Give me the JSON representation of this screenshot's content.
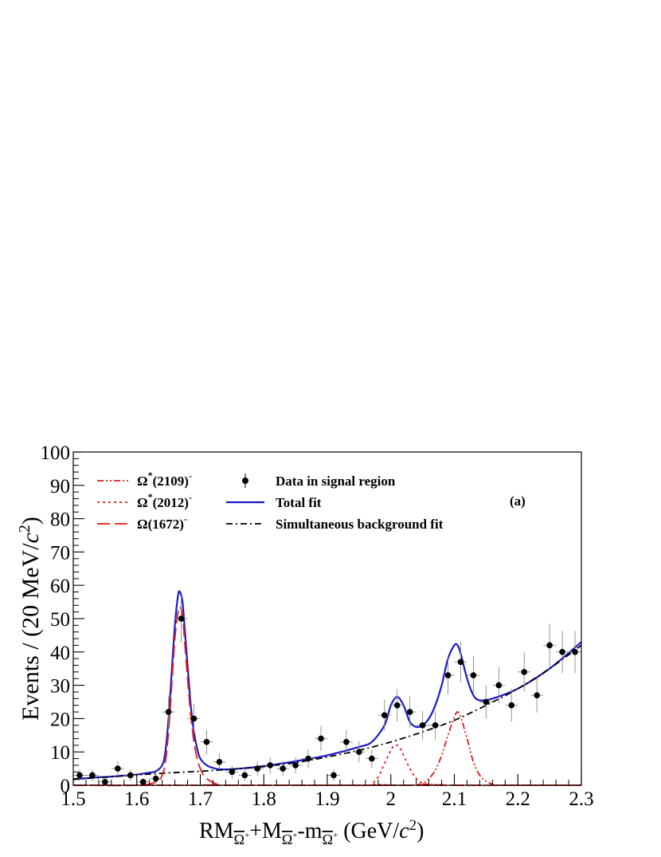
{
  "chart_data": {
    "type": "scatter",
    "xlabel": {
      "base": "RM",
      "sub1": "Ω",
      "sup1": "+",
      "mid1": "+M",
      "sub2": "Ω",
      "sup2": "+",
      "mid2": "-m",
      "sub3": "Ω",
      "sup3": "+",
      "units_pre": " (GeV/",
      "units_c": "c",
      "units_pow": "2",
      "units_post": ")"
    },
    "ylabel": {
      "pre": "Events / (20 MeV/",
      "c": "c",
      "pow": "2",
      "post": ")"
    },
    "xlim": [
      1.5,
      2.3
    ],
    "ylim": [
      0,
      100
    ],
    "x_ticks": [
      {
        "v": 1.5,
        "label": "1.5"
      },
      {
        "v": 1.6,
        "label": "1.6"
      },
      {
        "v": 1.7,
        "label": "1.7"
      },
      {
        "v": 1.8,
        "label": "1.8"
      },
      {
        "v": 1.9,
        "label": "1.9"
      },
      {
        "v": 2.0,
        "label": "2"
      },
      {
        "v": 2.1,
        "label": "2.1"
      },
      {
        "v": 2.2,
        "label": "2.2"
      },
      {
        "v": 2.3,
        "label": "2.3"
      }
    ],
    "y_ticks": [
      {
        "v": 0,
        "label": "0"
      },
      {
        "v": 10,
        "label": "10"
      },
      {
        "v": 20,
        "label": "20"
      },
      {
        "v": 30,
        "label": "30"
      },
      {
        "v": 40,
        "label": "40"
      },
      {
        "v": 50,
        "label": "50"
      },
      {
        "v": 60,
        "label": "60"
      },
      {
        "v": 70,
        "label": "70"
      },
      {
        "v": 80,
        "label": "80"
      },
      {
        "v": 90,
        "label": "90"
      },
      {
        "v": 100,
        "label": "100"
      }
    ],
    "panel_label": "(a)",
    "bin_width": 0.02,
    "data_points": {
      "name": "Data in signal region",
      "x": [
        1.51,
        1.53,
        1.55,
        1.57,
        1.59,
        1.61,
        1.63,
        1.65,
        1.67,
        1.69,
        1.71,
        1.73,
        1.75,
        1.77,
        1.79,
        1.81,
        1.83,
        1.85,
        1.87,
        1.89,
        1.91,
        1.93,
        1.95,
        1.97,
        1.99,
        2.01,
        2.03,
        2.05,
        2.07,
        2.09,
        2.11,
        2.13,
        2.15,
        2.17,
        2.19,
        2.21,
        2.23,
        2.25,
        2.27,
        2.29
      ],
      "y": [
        3,
        3,
        1,
        5,
        3,
        1,
        2,
        22,
        50,
        20,
        13,
        7,
        4,
        3,
        5,
        6,
        5,
        6,
        8,
        14,
        3,
        13,
        10,
        8,
        21,
        24,
        22,
        18,
        18,
        33,
        37,
        33,
        25,
        30,
        24,
        34,
        27,
        42,
        40,
        40
      ]
    },
    "curves": [
      {
        "name": "Total fit",
        "color": "#1a1acc",
        "style": "solid",
        "x": [
          1.5,
          1.52,
          1.54,
          1.56,
          1.58,
          1.6,
          1.62,
          1.63,
          1.64,
          1.645,
          1.65,
          1.655,
          1.66,
          1.665,
          1.668,
          1.672,
          1.675,
          1.68,
          1.685,
          1.69,
          1.695,
          1.7,
          1.71,
          1.72,
          1.73,
          1.75,
          1.8,
          1.85,
          1.9,
          1.95,
          1.97,
          1.99,
          2.0,
          2.01,
          2.02,
          2.03,
          2.04,
          2.05,
          2.06,
          2.07,
          2.08,
          2.09,
          2.1,
          2.105,
          2.11,
          2.12,
          2.13,
          2.14,
          2.16,
          2.2,
          2.25,
          2.3
        ],
        "y": [
          1.8,
          2.1,
          2.4,
          2.6,
          2.9,
          3.2,
          3.8,
          4.2,
          6,
          10,
          20,
          34,
          48,
          57,
          58,
          55,
          48,
          36,
          24,
          16,
          11,
          8,
          6,
          5.2,
          4.8,
          4.8,
          5.8,
          7.2,
          9,
          11.5,
          13,
          18,
          24,
          26.5,
          24,
          19,
          17.5,
          18,
          20,
          24,
          30,
          38,
          42,
          42,
          39.5,
          32,
          27,
          25.5,
          26,
          29,
          35,
          43
        ]
      },
      {
        "name": "Simultaneous background fit",
        "color": "#000000",
        "style": "dashdot",
        "x": [
          1.5,
          1.55,
          1.6,
          1.65,
          1.7,
          1.75,
          1.8,
          1.85,
          1.9,
          1.95,
          2.0,
          2.05,
          2.1,
          2.15,
          2.2,
          2.25,
          2.3
        ],
        "y": [
          1.8,
          2.4,
          3.1,
          3.7,
          4.2,
          4.8,
          5.6,
          6.8,
          8.5,
          10.5,
          13,
          16,
          19.5,
          24,
          29,
          35,
          42
        ]
      },
      {
        "name": "Ω(1672)",
        "color": "#e51919",
        "style": "longdash",
        "x": [
          1.5,
          1.6,
          1.63,
          1.64,
          1.645,
          1.65,
          1.655,
          1.66,
          1.665,
          1.668,
          1.672,
          1.675,
          1.68,
          1.685,
          1.69,
          1.695,
          1.7,
          1.705,
          1.71,
          1.72,
          1.73,
          1.75,
          2.3
        ],
        "y": [
          0,
          0,
          1,
          3,
          7,
          16,
          30,
          44,
          52,
          53.5,
          51,
          44,
          32,
          21,
          13,
          8,
          5,
          3,
          2,
          0.8,
          0.2,
          0,
          0
        ]
      },
      {
        "name": "Ω*(2012)",
        "color": "#e51919",
        "style": "dotted",
        "x": [
          1.5,
          1.96,
          1.97,
          1.98,
          1.99,
          2.0,
          2.005,
          2.01,
          2.015,
          2.02,
          2.03,
          2.04,
          2.05,
          2.06,
          2.3
        ],
        "y": [
          0,
          0,
          0.5,
          2.5,
          6.5,
          10.5,
          11.8,
          12,
          11,
          9,
          5,
          2,
          0.6,
          0,
          0
        ]
      },
      {
        "name": "Ω*(2109)",
        "color": "#e51919",
        "style": "dashdotdot",
        "x": [
          1.5,
          2.04,
          2.05,
          2.06,
          2.07,
          2.08,
          2.09,
          2.1,
          2.105,
          2.11,
          2.12,
          2.13,
          2.14,
          2.15,
          2.16,
          2.17,
          2.3
        ],
        "y": [
          0,
          0,
          0.5,
          2,
          4.5,
          9,
          15,
          20.5,
          22,
          20.5,
          14,
          7,
          3,
          1.2,
          0.4,
          0,
          0
        ]
      }
    ],
    "legend": {
      "left": [
        {
          "key": "omega2109",
          "label": "Ω",
          "sup": "*",
          "label2": "(2109)",
          "sup2": "-",
          "style": "dashdotdot",
          "color": "#e51919"
        },
        {
          "key": "omega2012",
          "label": "Ω",
          "sup": "*",
          "label2": "(2012)",
          "sup2": "-",
          "style": "dotted",
          "color": "#e51919"
        },
        {
          "key": "omega1672",
          "label": "Ω",
          "sup": "",
          "label2": "(1672)",
          "sup2": "-",
          "style": "longdash",
          "color": "#e51919"
        }
      ],
      "right": [
        {
          "key": "data",
          "label": "Data in signal region",
          "style": "marker"
        },
        {
          "key": "total",
          "label": "Total fit",
          "style": "solid",
          "color": "#1a1acc"
        },
        {
          "key": "bkg",
          "label": "Simultaneous background fit",
          "style": "dashdot",
          "color": "#000000"
        }
      ]
    }
  }
}
